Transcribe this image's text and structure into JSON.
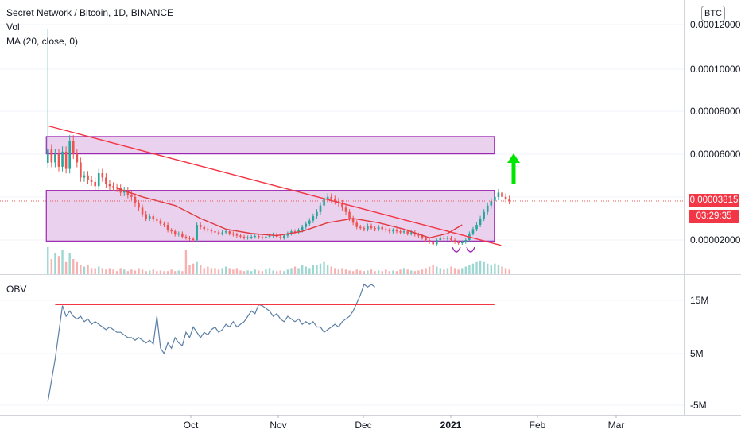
{
  "header": {
    "title": "Secret Network / Bitcoin, 1D, BINANCE",
    "volume_label": "Vol",
    "ma_label": "MA (20, close, 0)",
    "obv_label": "OBV",
    "currency": "BTC"
  },
  "price_axis": {
    "ticks": [
      "0.00012000",
      "0.00010000",
      "0.00008000",
      "0.00006000",
      "0.00002000"
    ],
    "current_price": "0.00003815",
    "countdown": "03:29:35"
  },
  "obv_axis": {
    "ticks": [
      "15M",
      "5M",
      "-5M"
    ]
  },
  "time_axis": {
    "ticks": [
      "Oct",
      "Nov",
      "Dec",
      "2021",
      "Feb",
      "Mar"
    ]
  },
  "colors": {
    "up": "#26a69a",
    "down": "#ef5350",
    "ma": "#e0393e",
    "trendline": "#f23645",
    "zone_fill": "#e1bee7",
    "zone_stroke": "#9c27b0",
    "arrow": "#00e600",
    "obv": "#5b7fa6",
    "grid": "#f0f3fa"
  },
  "chart_data": [
    {
      "type": "candlestick",
      "title": "Secret Network / Bitcoin, 1D, BINANCE",
      "x_start": "2020-10-01",
      "x_end": "2021-01-21",
      "ylim": [
        1e-05,
        0.000122
      ],
      "xlim": [
        "2020-09-20",
        "2021-03-25"
      ],
      "close": [
        6.2e-05,
        5.6e-05,
        6e-05,
        5.4e-05,
        6.1e-05,
        5.3e-05,
        6.6e-05,
        6e-05,
        5.6e-05,
        4.9e-05,
        5e-05,
        4.8e-05,
        4.7e-05,
        4.5e-05,
        5.1e-05,
        4.9e-05,
        4.6e-05,
        4.5e-05,
        4.45e-05,
        4.4e-05,
        4.2e-05,
        4.3e-05,
        4.1e-05,
        4e-05,
        3.7e-05,
        3.5e-05,
        3.2e-05,
        3e-05,
        3.1e-05,
        2.95e-05,
        2.9e-05,
        2.75e-05,
        2.7e-05,
        2.45e-05,
        2.4e-05,
        2.25e-05,
        2.3e-05,
        2.15e-05,
        2.1e-05,
        2.05e-05,
        2e-05,
        2.7e-05,
        2.6e-05,
        2.5e-05,
        2.45e-05,
        2.4e-05,
        2.35e-05,
        2.3e-05,
        2.35e-05,
        2.4e-05,
        2.3e-05,
        2.25e-05,
        2.2e-05,
        2.15e-05,
        2.1e-05,
        2.12e-05,
        2.15e-05,
        2.18e-05,
        2.13e-05,
        2.1e-05,
        2.15e-05,
        2.2e-05,
        2.25e-05,
        2.15e-05,
        2.1e-05,
        2.2e-05,
        2.3e-05,
        2.4e-05,
        2.35e-05,
        2.45e-05,
        2.6e-05,
        2.75e-05,
        2.9e-05,
        3.1e-05,
        3.3e-05,
        3.6e-05,
        3.9e-05,
        4e-05,
        3.9e-05,
        3.8e-05,
        3.7e-05,
        3.5e-05,
        3.3e-05,
        3e-05,
        2.8e-05,
        2.6e-05,
        2.55e-05,
        2.5e-05,
        2.65e-05,
        2.55e-05,
        2.5e-05,
        2.6e-05,
        2.5e-05,
        2.45e-05,
        2.4e-05,
        2.45e-05,
        2.4e-05,
        2.35e-05,
        2.4e-05,
        2.3e-05,
        2.35e-05,
        2.25e-05,
        2.2e-05,
        2.1e-05,
        2e-05,
        1.9e-05,
        1.8e-05,
        2e-05,
        2.1e-05,
        2.05e-05,
        2.1e-05,
        2e-05,
        1.9e-05,
        1.85e-05,
        1.9e-05,
        2e-05,
        2.3e-05,
        2.5e-05,
        2.7e-05,
        3e-05,
        3.3e-05,
        3.6e-05,
        3.8e-05,
        4e-05,
        4.2e-05,
        4e-05,
        3.9e-05,
        3.81e-05
      ],
      "ma": [
        [
          "2020-10-20",
          4.4e-05
        ],
        [
          "2020-10-27",
          4e-05
        ],
        [
          "2020-11-05",
          3.6e-05
        ],
        [
          "2020-11-12",
          3e-05
        ],
        [
          "2020-11-19",
          2.5e-05
        ],
        [
          "2020-11-26",
          2.3e-05
        ],
        [
          "2020-12-03",
          2.2e-05
        ],
        [
          "2020-12-10",
          2.4e-05
        ],
        [
          "2020-12-17",
          2.8e-05
        ],
        [
          "2020-12-24",
          3e-05
        ],
        [
          "2020-12-31",
          2.8e-05
        ],
        [
          "2021-01-07",
          2.5e-05
        ],
        [
          "2021-01-14",
          2.1e-05
        ],
        [
          "2021-01-19",
          2.3e-05
        ],
        [
          "2021-01-23",
          2.7e-05
        ]
      ],
      "volume": [
        0.9,
        0.5,
        0.7,
        0.6,
        0.8,
        0.4,
        0.7,
        0.5,
        0.4,
        0.3,
        0.25,
        0.3,
        0.2,
        0.2,
        0.25,
        0.2,
        0.15,
        0.2,
        0.15,
        0.1,
        0.2,
        0.15,
        0.1,
        0.15,
        0.12,
        0.2,
        0.15,
        0.1,
        0.12,
        0.15,
        0.1,
        0.12,
        0.1,
        0.1,
        0.15,
        0.1,
        0.12,
        0.1,
        0.8,
        0.3,
        0.35,
        0.4,
        0.3,
        0.2,
        0.25,
        0.2,
        0.2,
        0.15,
        0.2,
        0.25,
        0.2,
        0.15,
        0.2,
        0.12,
        0.1,
        0.12,
        0.1,
        0.15,
        0.12,
        0.1,
        0.15,
        0.2,
        0.12,
        0.1,
        0.12,
        0.1,
        0.15,
        0.2,
        0.25,
        0.2,
        0.3,
        0.25,
        0.2,
        0.3,
        0.3,
        0.35,
        0.4,
        0.3,
        0.25,
        0.2,
        0.15,
        0.2,
        0.15,
        0.12,
        0.1,
        0.15,
        0.12,
        0.1,
        0.12,
        0.15,
        0.1,
        0.12,
        0.1,
        0.15,
        0.1,
        0.12,
        0.1,
        0.15,
        0.2,
        0.15,
        0.12,
        0.1,
        0.12,
        0.15,
        0.2,
        0.25,
        0.3,
        0.25,
        0.2,
        0.15,
        0.2,
        0.25,
        0.2,
        0.15,
        0.2,
        0.25,
        0.3,
        0.35,
        0.4,
        0.45,
        0.4,
        0.35,
        0.3,
        0.35,
        0.3,
        0.25,
        0.2,
        0.15
      ],
      "zones": [
        {
          "from": "2020-10-01",
          "to": "2021-01-31",
          "low": 6e-05,
          "high": 6.8e-05
        },
        {
          "from": "2020-10-01",
          "to": "2021-01-31",
          "low": 1.95e-05,
          "high": 4.3e-05
        }
      ],
      "trendline": [
        [
          "2020-10-01",
          7.3e-05
        ],
        [
          "2021-02-01",
          1.75e-05
        ]
      ]
    },
    {
      "type": "line",
      "title": "OBV",
      "ylim": [
        -6,
        19
      ],
      "values": [
        -4,
        0,
        4,
        9,
        14,
        12,
        13,
        12,
        11.5,
        12,
        11,
        11.5,
        10.5,
        11,
        10.5,
        10,
        9.5,
        10,
        9.5,
        9,
        9,
        8.5,
        8,
        8,
        7.5,
        8,
        7.5,
        7,
        7.5,
        6.8,
        12,
        6,
        5,
        7,
        6,
        8,
        7,
        6.5,
        9,
        8,
        10,
        9,
        8,
        9,
        8.5,
        9.5,
        10,
        9,
        9.5,
        10.5,
        10,
        11,
        10,
        10.5,
        11,
        12,
        13,
        12.5,
        14.2,
        14,
        13.5,
        13,
        12,
        12.5,
        11.5,
        11,
        12,
        11.5,
        11,
        11.5,
        10.5,
        11,
        10.5,
        11,
        10,
        10,
        9,
        9.5,
        10,
        10.5,
        10,
        11,
        11.5,
        12,
        13,
        14.5,
        16,
        18,
        17.5,
        18,
        17.5
      ],
      "resistance": [
        [
          "2020-10-03",
          14.2
        ],
        [
          "2021-01-31",
          14.2
        ]
      ]
    }
  ]
}
